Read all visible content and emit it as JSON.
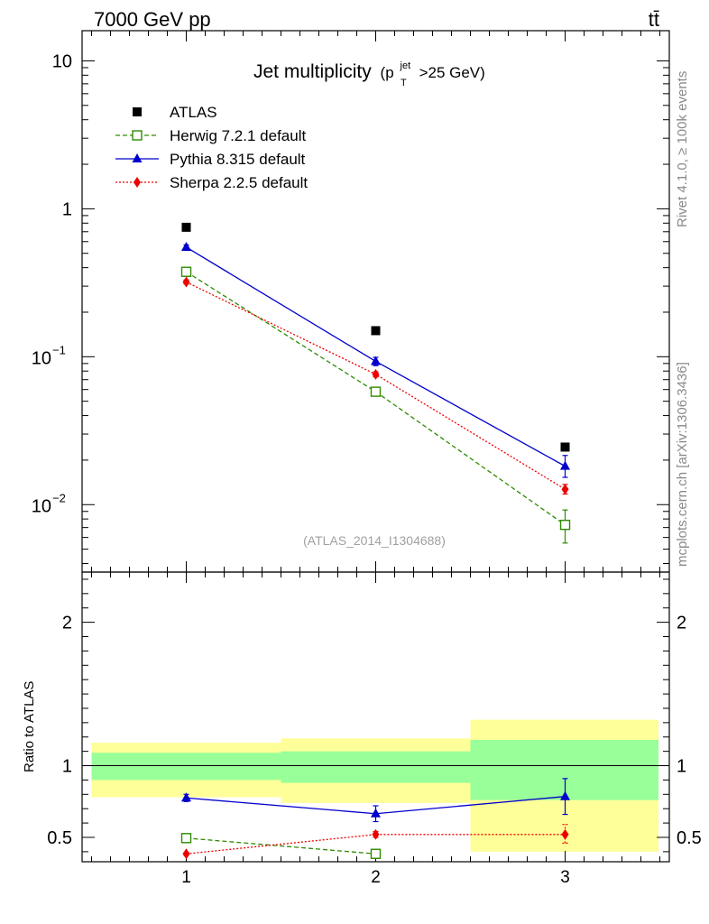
{
  "header": {
    "left": "7000 GeV pp",
    "right": "tt̄"
  },
  "side_text": {
    "rivet": "Rivet 4.1.0, ≥ 100k events",
    "mcplots": "mcplots.cern.ch [arXiv:1306.3436]"
  },
  "chart_data": {
    "type": "scatter",
    "title": "Jet multiplicity",
    "title_math": {
      "open": "(p",
      "sup": "jet",
      "sub": "T",
      "close": ">25 GeV)"
    },
    "watermark": "(ATLAS_2014_I1304688)",
    "x": [
      1,
      2,
      3
    ],
    "x_bins": [
      [
        0.5,
        1.5
      ],
      [
        1.5,
        2.5
      ],
      [
        2.5,
        3.5
      ]
    ],
    "xlim": [
      0.45,
      3.55
    ],
    "xticks": [
      "1",
      "2",
      "3"
    ],
    "main": {
      "yscale": "log",
      "ylim": [
        0.0035,
        16
      ],
      "yticks": [
        {
          "value": 10,
          "label": "10"
        },
        {
          "value": 1,
          "label": "1"
        },
        {
          "value": 0.1,
          "base": "10",
          "exp": "−1"
        },
        {
          "value": 0.01,
          "base": "10",
          "exp": "−2"
        }
      ]
    },
    "series": [
      {
        "name": "ATLAS",
        "kind": "data",
        "color": "#000000",
        "marker": "square-filled",
        "values": [
          0.75,
          0.15,
          0.0245
        ]
      },
      {
        "name": "Herwig 7.2.1 default",
        "color": "#2e8b00",
        "marker": "square-open",
        "line": "dashed",
        "values": [
          0.375,
          0.058,
          0.0073
        ],
        "err": [
          [
            0.35,
            0.4
          ],
          [
            0.055,
            0.061
          ],
          [
            0.0055,
            0.0092
          ]
        ]
      },
      {
        "name": "Pythia 8.315 default",
        "color": "#0000cc",
        "marker": "triangle",
        "line": "solid",
        "values": [
          0.55,
          0.093,
          0.0182
        ],
        "err": [
          [
            0.53,
            0.57
          ],
          [
            0.087,
            0.099
          ],
          [
            0.0153,
            0.0215
          ]
        ]
      },
      {
        "name": "Sherpa 2.2.5 default",
        "color": "#ee0000",
        "marker": "diamond",
        "line": "dotted",
        "values": [
          0.32,
          0.076,
          0.0127
        ],
        "err": [
          [
            0.31,
            0.33
          ],
          [
            0.073,
            0.079
          ],
          [
            0.0118,
            0.0137
          ]
        ]
      }
    ],
    "ratio": {
      "ylabel": "Ratio to ATLAS",
      "ylim": [
        0.33,
        2.35
      ],
      "yticks": [
        {
          "value": 2,
          "label": "2"
        },
        {
          "value": 1,
          "label": "1"
        },
        {
          "value": 0.5,
          "label": "0.5"
        }
      ],
      "band_inner": [
        [
          0.9,
          1.09
        ],
        [
          0.88,
          1.1
        ],
        [
          0.76,
          1.18
        ]
      ],
      "band_outer": [
        [
          0.78,
          1.16
        ],
        [
          0.74,
          1.19
        ],
        [
          0.4,
          1.32
        ]
      ],
      "series": [
        {
          "name": "Herwig 7.2.1 default",
          "values": [
            0.495,
            0.385,
            null
          ]
        },
        {
          "name": "Pythia 8.315 default",
          "values": [
            0.775,
            0.665,
            0.785
          ],
          "err": [
            [
              0.75,
              0.8
            ],
            [
              0.61,
              0.72
            ],
            [
              0.66,
              0.91
            ]
          ]
        },
        {
          "name": "Sherpa 2.2.5 default",
          "values": [
            0.385,
            0.52,
            0.52
          ],
          "err": [
            [
              0.375,
              0.395
            ],
            [
              0.5,
              0.54
            ],
            [
              0.46,
              0.59
            ]
          ]
        }
      ]
    }
  }
}
